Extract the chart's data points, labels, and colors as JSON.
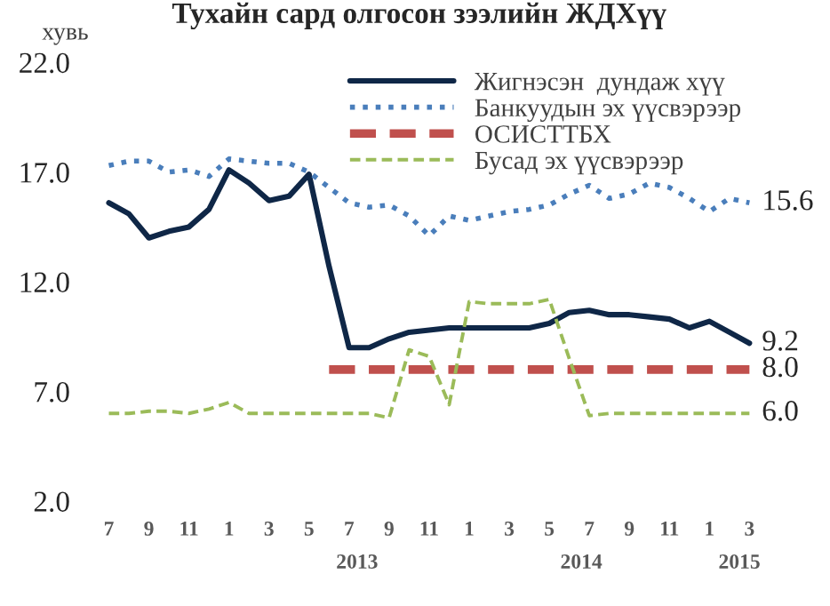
{
  "chart_data": {
    "type": "line",
    "title": "Тухайн сард олгосон зээлийн ЖДХүү",
    "ylabel": "хувь",
    "categories": [
      "7",
      null,
      "9",
      null,
      "11",
      null,
      "1",
      null,
      "3",
      null,
      "5",
      null,
      "7",
      null,
      "9",
      null,
      "11",
      null,
      "1",
      null,
      "3",
      null,
      "5",
      null,
      "7",
      null,
      "9",
      null,
      "11",
      null,
      "1",
      null,
      "3"
    ],
    "series": [
      {
        "name": "Жигнэсэн  дундаж хүү",
        "color": "#0f2747",
        "line_style": "solid",
        "values": [
          15.6,
          15.1,
          14.0,
          14.3,
          14.5,
          15.3,
          17.1,
          16.5,
          15.7,
          15.9,
          16.9,
          12.7,
          9.0,
          9.0,
          9.4,
          9.7,
          9.8,
          9.9,
          9.9,
          9.9,
          9.9,
          9.9,
          10.1,
          10.6,
          10.7,
          10.5,
          10.5,
          10.4,
          10.3,
          9.9,
          10.2,
          9.7,
          9.2
        ],
        "value_labels": [
          null,
          null,
          null,
          null,
          null,
          null,
          null,
          null,
          null,
          null,
          null,
          null,
          null,
          null,
          null,
          null,
          null,
          null,
          null,
          null,
          null,
          null,
          null,
          null,
          null,
          null,
          null,
          null,
          null,
          null,
          null,
          null,
          "9.2"
        ]
      },
      {
        "name": "Банкуудын эх үүсвэрээр",
        "color": "#4a7ebb",
        "line_style": "dotted",
        "values": [
          17.3,
          17.5,
          17.5,
          17.0,
          17.1,
          16.8,
          17.6,
          17.5,
          17.4,
          17.4,
          17.0,
          16.3,
          15.6,
          15.4,
          15.5,
          15.0,
          14.1,
          15.0,
          14.8,
          15.0,
          15.2,
          15.3,
          15.5,
          16.0,
          16.4,
          15.8,
          16.0,
          16.5,
          16.3,
          15.8,
          15.2,
          15.8,
          15.6
        ],
        "value_labels": [
          null,
          null,
          null,
          null,
          null,
          null,
          null,
          null,
          null,
          null,
          null,
          null,
          null,
          null,
          null,
          null,
          null,
          null,
          null,
          null,
          null,
          null,
          null,
          null,
          null,
          null,
          null,
          null,
          null,
          null,
          null,
          null,
          "15.6"
        ]
      },
      {
        "name": "ОСИСТТБХ",
        "color": "#c0504d",
        "line_style": "dashed",
        "values": [
          null,
          null,
          null,
          null,
          null,
          null,
          null,
          null,
          null,
          null,
          null,
          8.0,
          8.0,
          8.0,
          8.0,
          8.0,
          8.0,
          8.0,
          8.0,
          8.0,
          8.0,
          8.0,
          8.0,
          8.0,
          8.0,
          8.0,
          8.0,
          8.0,
          8.0,
          8.0,
          8.0,
          8.0,
          8.0
        ],
        "value_labels": [
          null,
          null,
          null,
          null,
          null,
          null,
          null,
          null,
          null,
          null,
          null,
          null,
          null,
          null,
          null,
          null,
          null,
          null,
          null,
          null,
          null,
          null,
          null,
          null,
          null,
          null,
          null,
          null,
          null,
          null,
          null,
          null,
          "8.0"
        ]
      },
      {
        "name": "Бусад эх үүсвэрээр",
        "color": "#9bbb59",
        "line_style": "dashed",
        "values": [
          6.0,
          6.0,
          6.1,
          6.1,
          6.0,
          6.2,
          6.5,
          6.0,
          6.0,
          6.0,
          6.0,
          6.0,
          6.0,
          6.0,
          5.8,
          8.9,
          8.6,
          6.4,
          11.1,
          11.0,
          11.0,
          11.0,
          11.2,
          8.5,
          5.9,
          6.0,
          6.0,
          6.0,
          6.0,
          6.0,
          6.0,
          6.0,
          6.0
        ],
        "value_labels": [
          null,
          null,
          null,
          null,
          null,
          null,
          null,
          null,
          null,
          null,
          null,
          null,
          null,
          null,
          null,
          null,
          null,
          null,
          null,
          null,
          null,
          null,
          null,
          null,
          null,
          null,
          null,
          null,
          null,
          null,
          null,
          null,
          "6.0"
        ]
      }
    ],
    "ylim": [
      2,
      22
    ],
    "yticks": [
      {
        "value": 2,
        "label": "2.0"
      },
      {
        "value": 7,
        "label": "7.0"
      },
      {
        "value": 12,
        "label": "12.0"
      },
      {
        "value": 17,
        "label": "17.0"
      },
      {
        "value": 22,
        "label": "22.0"
      }
    ],
    "annotations": [
      "2013",
      "2014",
      "2015"
    ],
    "legend": "top right",
    "grid": false,
    "marker": "none"
  }
}
